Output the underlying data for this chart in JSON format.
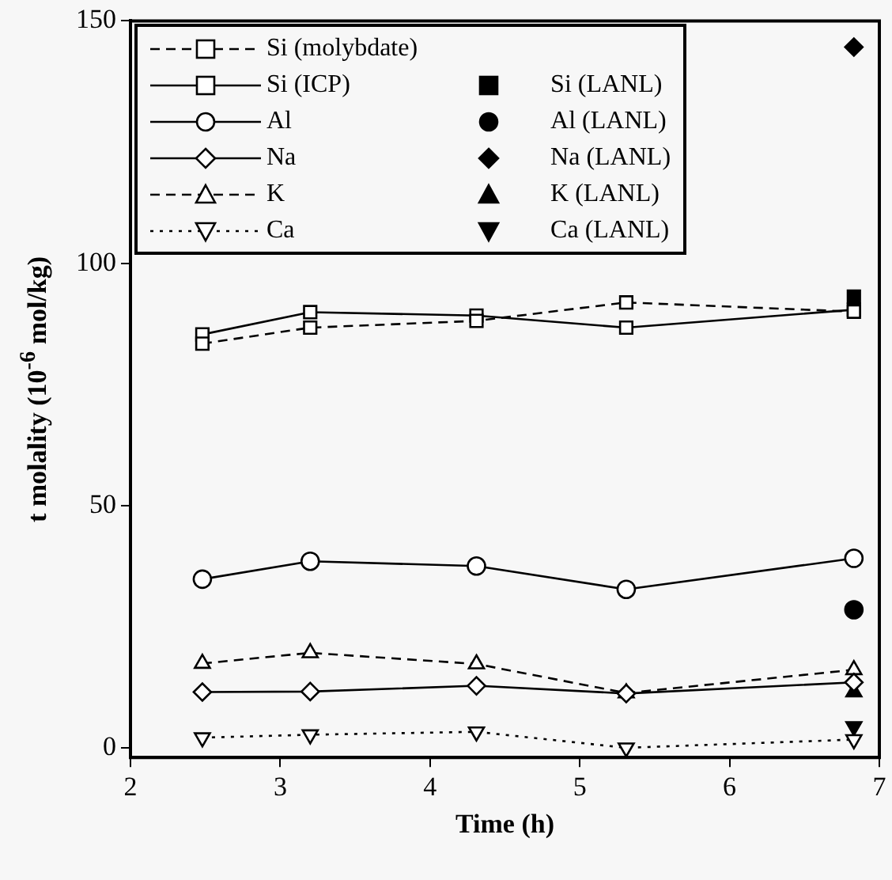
{
  "chart_data": {
    "type": "line",
    "xlabel": "Time (h)",
    "ylabel": "t molality (10$^{-6}$ mol/kg)",
    "xlim": [
      2,
      7
    ],
    "xticks": [
      2,
      3,
      4,
      5,
      6,
      7
    ],
    "ylim": [
      -2,
      150
    ],
    "yticks": [
      0,
      50,
      100,
      150
    ],
    "grid": false,
    "legend": "top left",
    "series": [
      {
        "name": "Si (molybdate)",
        "type": "line",
        "color": "#000000",
        "marker": "square",
        "line_style": "dashed",
        "x": [
          2.48,
          3.2,
          4.31,
          5.31,
          6.83
        ],
        "values": [
          83.4,
          86.7,
          88.1,
          91.9,
          90.0
        ]
      },
      {
        "name": "Si (ICP)",
        "type": "line",
        "color": "#000000",
        "marker": "square",
        "line_style": "solid",
        "x": [
          2.48,
          3.2,
          4.31,
          5.31,
          6.83
        ],
        "values": [
          85.3,
          89.9,
          89.2,
          86.7,
          90.4
        ]
      },
      {
        "name": "Al",
        "type": "line",
        "color": "#000000",
        "marker": "circle",
        "line_style": "solid",
        "x": [
          2.48,
          3.2,
          4.31,
          5.31,
          6.83
        ],
        "values": [
          34.8,
          38.5,
          37.5,
          32.7,
          39.1
        ]
      },
      {
        "name": "Na",
        "type": "line",
        "color": "#000000",
        "marker": "diamond",
        "line_style": "solid",
        "x": [
          2.48,
          3.2,
          4.31,
          5.31,
          6.83
        ],
        "values": [
          11.5,
          11.6,
          12.8,
          11.2,
          13.5
        ]
      },
      {
        "name": "K",
        "type": "line",
        "color": "#000000",
        "marker": "triangle",
        "line_style": "dashed",
        "x": [
          2.48,
          3.2,
          4.31,
          5.31,
          6.83
        ],
        "values": [
          17.4,
          19.6,
          17.3,
          11.3,
          16.1
        ]
      },
      {
        "name": "Ca",
        "type": "line",
        "color": "#000000",
        "marker": "triangle_down",
        "line_style": "dotted",
        "x": [
          2.48,
          3.2,
          4.31,
          5.31,
          6.83
        ],
        "values": [
          2.1,
          2.7,
          3.3,
          0.0,
          1.7
        ]
      },
      {
        "name": "Si (LANL)",
        "type": "scatter",
        "color": "#000000",
        "marker": "square",
        "x": [
          6.83
        ],
        "values": [
          93.1
        ]
      },
      {
        "name": "Al (LANL)",
        "type": "scatter",
        "color": "#000000",
        "marker": "circle",
        "x": [
          6.83
        ],
        "values": [
          28.5
        ]
      },
      {
        "name": "Na (LANL)",
        "type": "scatter",
        "color": "#000000",
        "marker": "diamond",
        "x": [
          6.83
        ],
        "values": [
          144.6
        ]
      },
      {
        "name": "K (LANL)",
        "type": "scatter",
        "color": "#000000",
        "marker": "triangle",
        "x": [
          6.83
        ],
        "values": [
          11.5
        ]
      },
      {
        "name": "Ca (LANL)",
        "type": "scatter",
        "color": "#000000",
        "marker": "triangle_down",
        "x": [
          6.83
        ],
        "values": [
          4.4
        ]
      }
    ]
  }
}
